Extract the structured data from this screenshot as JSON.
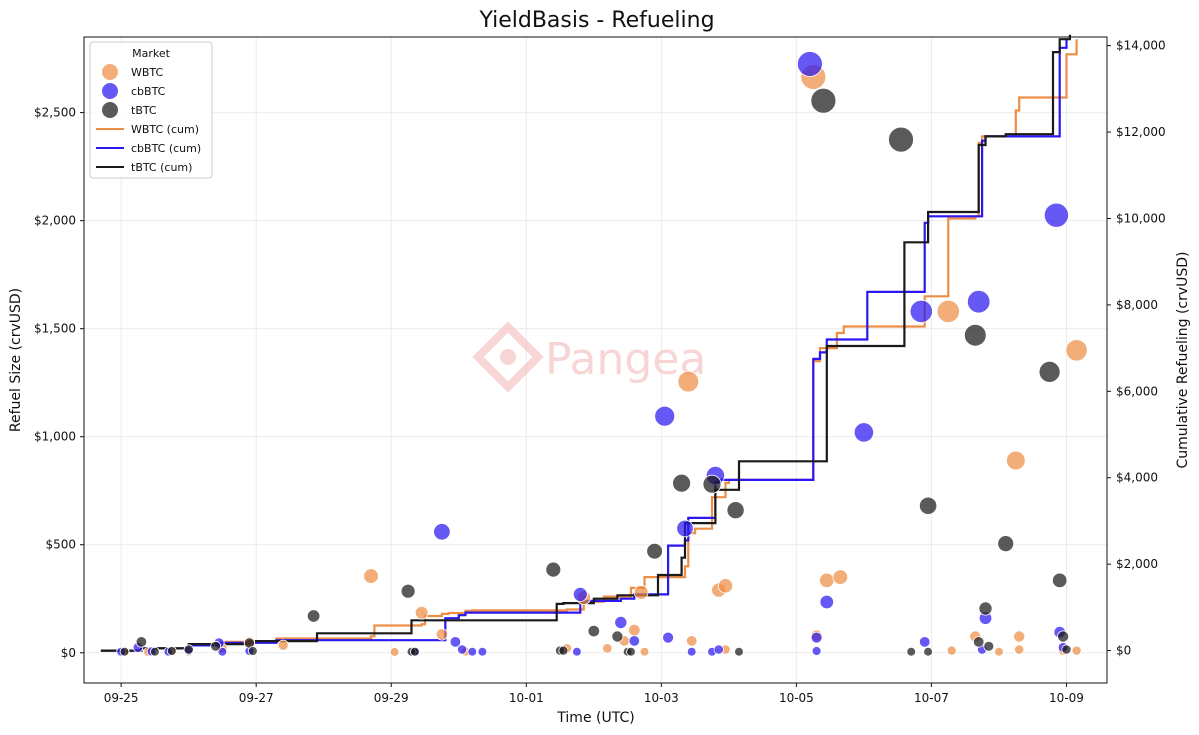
{
  "chart_data": {
    "type": "scatter",
    "title": "YieldBasis - Refueling",
    "xlabel": "Time (UTC)",
    "ylabel": "Refuel Size (crvUSD)",
    "y2label": "Cumulative Refueling (crvUSD)",
    "watermark": "Pangea",
    "xlim": [
      -0.55,
      14.6
    ],
    "ylim": [
      -140,
      2850
    ],
    "y2lim": [
      -750,
      14200
    ],
    "x_ticks": [
      {
        "value": 0,
        "label": "09-25"
      },
      {
        "value": 2,
        "label": "09-27"
      },
      {
        "value": 4,
        "label": "09-29"
      },
      {
        "value": 6,
        "label": "10-01"
      },
      {
        "value": 8,
        "label": "10-03"
      },
      {
        "value": 10,
        "label": "10-05"
      },
      {
        "value": 12,
        "label": "10-07"
      },
      {
        "value": 14,
        "label": "10-09"
      }
    ],
    "y_ticks": [
      {
        "value": 0,
        "label": "$0"
      },
      {
        "value": 500,
        "label": "$500"
      },
      {
        "value": 1000,
        "label": "$1,000"
      },
      {
        "value": 1500,
        "label": "$1,500"
      },
      {
        "value": 2000,
        "label": "$2,000"
      },
      {
        "value": 2500,
        "label": "$2,500"
      }
    ],
    "y2_ticks": [
      {
        "value": 0,
        "label": "$0"
      },
      {
        "value": 2000,
        "label": "$2,000"
      },
      {
        "value": 4000,
        "label": "$4,000"
      },
      {
        "value": 6000,
        "label": "$6,000"
      },
      {
        "value": 8000,
        "label": "$8,000"
      },
      {
        "value": 10000,
        "label": "$10,000"
      },
      {
        "value": 12000,
        "label": "$12,000"
      },
      {
        "value": 14000,
        "label": "$14,000"
      }
    ],
    "legend": {
      "title": "Market",
      "position": "top-left",
      "entries": [
        {
          "label": "WBTC",
          "kind": "marker",
          "color": "#ED8E45"
        },
        {
          "label": "cbBTC",
          "kind": "marker",
          "color": "#2B17F0"
        },
        {
          "label": "tBTC",
          "kind": "marker",
          "color": "#1A1A1A"
        },
        {
          "label": "WBTC (cum)",
          "kind": "line",
          "color": "#ED8E45"
        },
        {
          "label": "cbBTC (cum)",
          "kind": "line",
          "color": "#2B17F0"
        },
        {
          "label": "tBTC (cum)",
          "kind": "line",
          "color": "#1A1A1A"
        }
      ]
    },
    "scatter_series": [
      {
        "name": "WBTC",
        "color": "#ED8E45",
        "points": [
          [
            0.05,
            8
          ],
          [
            0.4,
            4
          ],
          [
            0.75,
            6
          ],
          [
            1.0,
            4
          ],
          [
            1.5,
            20
          ],
          [
            1.9,
            50
          ],
          [
            2.4,
            35
          ],
          [
            3.7,
            355
          ],
          [
            4.05,
            4
          ],
          [
            4.45,
            185
          ],
          [
            4.75,
            85
          ],
          [
            5.1,
            6
          ],
          [
            6.6,
            20
          ],
          [
            6.85,
            255
          ],
          [
            7.2,
            20
          ],
          [
            7.45,
            55
          ],
          [
            7.6,
            105
          ],
          [
            7.7,
            280
          ],
          [
            7.75,
            5
          ],
          [
            8.4,
            1255
          ],
          [
            8.45,
            55
          ],
          [
            8.85,
            290
          ],
          [
            8.95,
            310
          ],
          [
            8.95,
            15
          ],
          [
            10.25,
            2665
          ],
          [
            10.3,
            80
          ],
          [
            10.45,
            335
          ],
          [
            10.65,
            350
          ],
          [
            12.25,
            1580
          ],
          [
            12.65,
            75
          ],
          [
            13.25,
            890
          ],
          [
            13.3,
            75
          ],
          [
            13.3,
            15
          ],
          [
            13.95,
            10
          ],
          [
            14.15,
            1400
          ],
          [
            14.15,
            10
          ],
          [
            12.3,
            10
          ],
          [
            13.0,
            5
          ]
        ]
      },
      {
        "name": "cbBTC",
        "color": "#2B17F0",
        "points": [
          [
            0.0,
            5
          ],
          [
            0.25,
            25
          ],
          [
            0.45,
            6
          ],
          [
            0.7,
            5
          ],
          [
            1.0,
            10
          ],
          [
            1.45,
            45
          ],
          [
            1.5,
            5
          ],
          [
            1.9,
            8
          ],
          [
            4.35,
            5
          ],
          [
            4.75,
            560
          ],
          [
            4.95,
            50
          ],
          [
            5.05,
            15
          ],
          [
            5.2,
            5
          ],
          [
            5.35,
            5
          ],
          [
            6.75,
            5
          ],
          [
            6.8,
            270
          ],
          [
            7.4,
            140
          ],
          [
            7.6,
            55
          ],
          [
            8.05,
            1095
          ],
          [
            8.1,
            70
          ],
          [
            8.35,
            575
          ],
          [
            8.45,
            5
          ],
          [
            8.75,
            5
          ],
          [
            8.8,
            820
          ],
          [
            8.85,
            15
          ],
          [
            10.2,
            2725
          ],
          [
            10.3,
            70
          ],
          [
            10.3,
            8
          ],
          [
            10.45,
            235
          ],
          [
            11.0,
            1020
          ],
          [
            11.85,
            1580
          ],
          [
            11.9,
            50
          ],
          [
            12.7,
            1625
          ],
          [
            12.8,
            160
          ],
          [
            12.75,
            15
          ],
          [
            13.85,
            2025
          ],
          [
            13.9,
            95
          ],
          [
            13.95,
            25
          ]
        ]
      },
      {
        "name": "tBTC",
        "color": "#1A1A1A",
        "points": [
          [
            0.05,
            5
          ],
          [
            0.3,
            50
          ],
          [
            0.5,
            5
          ],
          [
            0.75,
            8
          ],
          [
            1.0,
            15
          ],
          [
            1.4,
            30
          ],
          [
            1.9,
            45
          ],
          [
            1.95,
            8
          ],
          [
            2.85,
            170
          ],
          [
            4.25,
            285
          ],
          [
            4.3,
            5
          ],
          [
            4.35,
            5
          ],
          [
            6.4,
            385
          ],
          [
            6.5,
            10
          ],
          [
            6.55,
            10
          ],
          [
            7.0,
            100
          ],
          [
            7.35,
            75
          ],
          [
            7.5,
            5
          ],
          [
            7.55,
            5
          ],
          [
            7.9,
            470
          ],
          [
            8.3,
            785
          ],
          [
            8.75,
            780
          ],
          [
            9.1,
            660
          ],
          [
            9.15,
            5
          ],
          [
            10.4,
            2555
          ],
          [
            11.55,
            2375
          ],
          [
            11.7,
            5
          ],
          [
            11.95,
            680
          ],
          [
            11.95,
            5
          ],
          [
            12.65,
            1470
          ],
          [
            12.7,
            50
          ],
          [
            12.8,
            205
          ],
          [
            12.85,
            30
          ],
          [
            13.1,
            505
          ],
          [
            13.75,
            1300
          ],
          [
            13.9,
            335
          ],
          [
            13.95,
            75
          ],
          [
            14.0,
            15
          ]
        ]
      }
    ],
    "cumulative_series": [
      {
        "name": "WBTC (cum)",
        "color": "#ED8E45",
        "points": [
          [
            -0.3,
            0
          ],
          [
            0.3,
            50
          ],
          [
            1.0,
            120
          ],
          [
            1.5,
            200
          ],
          [
            2.3,
            280
          ],
          [
            3.7,
            330
          ],
          [
            3.75,
            580
          ],
          [
            4.45,
            610
          ],
          [
            4.5,
            800
          ],
          [
            4.75,
            850
          ],
          [
            4.85,
            870
          ],
          [
            5.1,
            920
          ],
          [
            5.2,
            930
          ],
          [
            6.6,
            950
          ],
          [
            6.85,
            1130
          ],
          [
            7.15,
            1250
          ],
          [
            7.55,
            1450
          ],
          [
            7.75,
            1700
          ],
          [
            8.35,
            1950
          ],
          [
            8.4,
            2720
          ],
          [
            8.5,
            2820
          ],
          [
            8.75,
            3550
          ],
          [
            8.95,
            3880
          ],
          [
            9.0,
            3950
          ],
          [
            9.6,
            3950
          ],
          [
            10.25,
            6700
          ],
          [
            10.35,
            7000
          ],
          [
            10.6,
            7350
          ],
          [
            10.7,
            7500
          ],
          [
            11.85,
            7500
          ],
          [
            11.9,
            8200
          ],
          [
            12.25,
            10000
          ],
          [
            12.65,
            10050
          ],
          [
            12.7,
            11750
          ],
          [
            12.75,
            11900
          ],
          [
            13.2,
            11900
          ],
          [
            13.25,
            12500
          ],
          [
            13.3,
            12800
          ],
          [
            13.95,
            12800
          ],
          [
            14.0,
            13800
          ],
          [
            14.15,
            14150
          ]
        ]
      },
      {
        "name": "cbBTC (cum)",
        "color": "#2B17F0",
        "points": [
          [
            -0.3,
            0
          ],
          [
            0.3,
            50
          ],
          [
            1.0,
            120
          ],
          [
            1.45,
            180
          ],
          [
            2.3,
            240
          ],
          [
            4.75,
            240
          ],
          [
            4.8,
            750
          ],
          [
            5.0,
            820
          ],
          [
            5.1,
            880
          ],
          [
            6.75,
            880
          ],
          [
            6.8,
            1150
          ],
          [
            7.4,
            1200
          ],
          [
            7.6,
            1300
          ],
          [
            8.05,
            1300
          ],
          [
            8.1,
            2430
          ],
          [
            8.35,
            2550
          ],
          [
            8.4,
            3070
          ],
          [
            8.75,
            3070
          ],
          [
            8.8,
            3900
          ],
          [
            8.85,
            3950
          ],
          [
            10.2,
            3950
          ],
          [
            10.25,
            6750
          ],
          [
            10.35,
            6900
          ],
          [
            10.45,
            7200
          ],
          [
            11.0,
            7200
          ],
          [
            11.05,
            8300
          ],
          [
            11.85,
            8300
          ],
          [
            11.9,
            9900
          ],
          [
            11.95,
            10050
          ],
          [
            12.7,
            10050
          ],
          [
            12.75,
            11800
          ],
          [
            12.8,
            11900
          ],
          [
            13.85,
            11900
          ],
          [
            13.9,
            13950
          ],
          [
            14.0,
            14150
          ]
        ]
      },
      {
        "name": "tBTC (cum)",
        "color": "#1A1A1A",
        "points": [
          [
            -0.3,
            0
          ],
          [
            0.3,
            50
          ],
          [
            1.0,
            150
          ],
          [
            1.9,
            220
          ],
          [
            2.85,
            220
          ],
          [
            2.9,
            400
          ],
          [
            4.25,
            400
          ],
          [
            4.3,
            700
          ],
          [
            6.4,
            700
          ],
          [
            6.45,
            1080
          ],
          [
            6.55,
            1100
          ],
          [
            7.0,
            1200
          ],
          [
            7.35,
            1280
          ],
          [
            7.9,
            1280
          ],
          [
            7.95,
            1750
          ],
          [
            8.3,
            2150
          ],
          [
            8.35,
            2950
          ],
          [
            8.75,
            2950
          ],
          [
            8.8,
            3720
          ],
          [
            9.1,
            3720
          ],
          [
            9.15,
            4380
          ],
          [
            10.4,
            4380
          ],
          [
            10.45,
            7050
          ],
          [
            11.55,
            7050
          ],
          [
            11.6,
            9450
          ],
          [
            11.9,
            9450
          ],
          [
            11.95,
            10150
          ],
          [
            12.65,
            10150
          ],
          [
            12.7,
            11700
          ],
          [
            12.8,
            11900
          ],
          [
            13.1,
            11950
          ],
          [
            13.75,
            11950
          ],
          [
            13.8,
            13850
          ],
          [
            13.9,
            14150
          ],
          [
            14.05,
            14250
          ]
        ]
      }
    ]
  }
}
